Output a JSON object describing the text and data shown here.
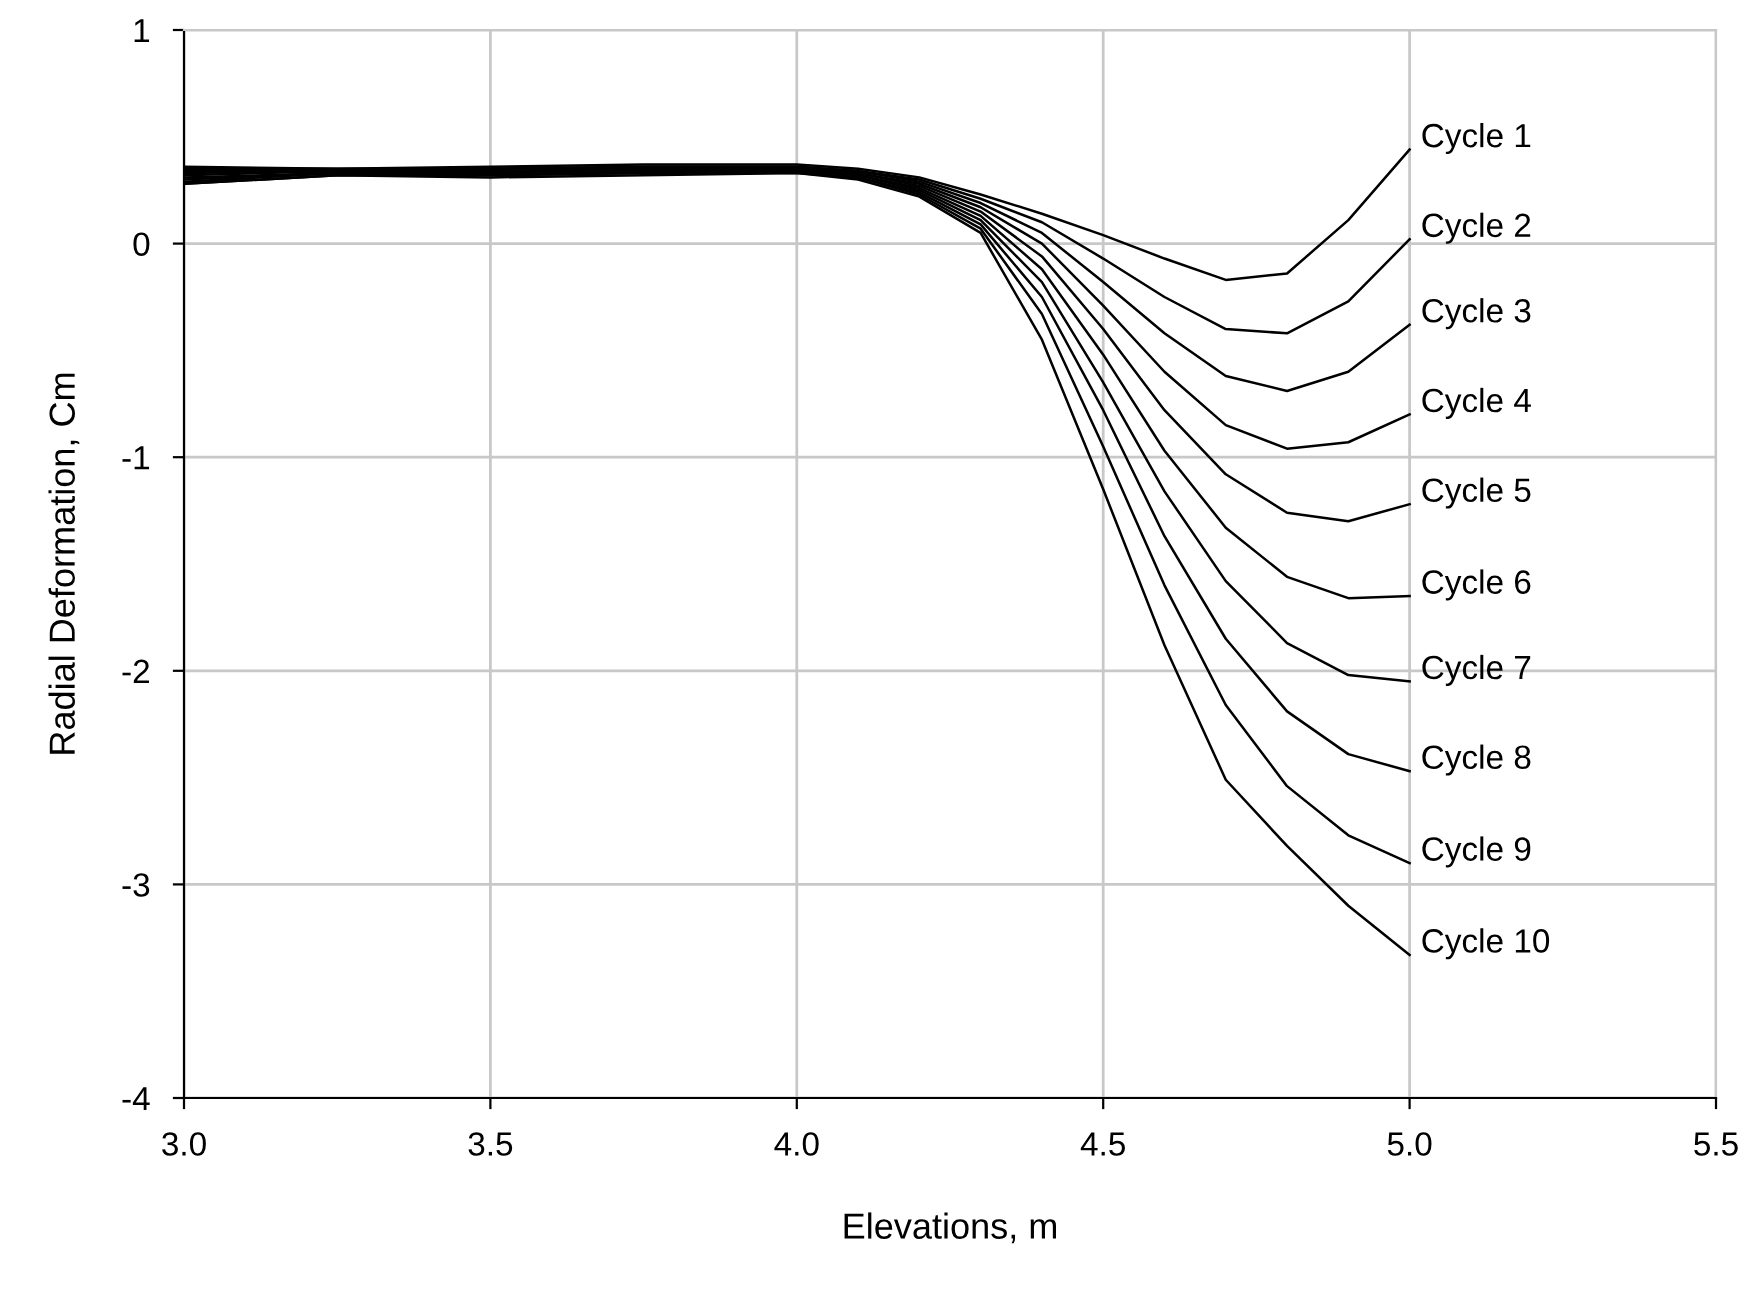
{
  "chart_data": {
    "type": "line",
    "xlabel": "Elevations, m",
    "ylabel": "Radial Deformation, Cm",
    "x": [
      3.0,
      3.25,
      3.5,
      3.75,
      4.0,
      4.1,
      4.2,
      4.3,
      4.4,
      4.5,
      4.6,
      4.7,
      4.8,
      4.9,
      5.0
    ],
    "xlim": [
      3.0,
      5.5
    ],
    "xticks": [
      {
        "value": 3.0,
        "label": "3.0"
      },
      {
        "value": 3.5,
        "label": "3.5"
      },
      {
        "value": 4.0,
        "label": "4.0"
      },
      {
        "value": 4.5,
        "label": "4.5"
      },
      {
        "value": 5.0,
        "label": "5.0"
      },
      {
        "value": 5.5,
        "label": "5.5"
      }
    ],
    "ylim": [
      -4,
      1
    ],
    "yticks": [
      -4,
      -3,
      -2,
      -1,
      0,
      1
    ],
    "grid": true,
    "legend": false,
    "marker": "none",
    "line_style": "solid",
    "series": [
      {
        "name": "Cycle 1",
        "color": "#000000",
        "values": [
          0.36,
          0.35,
          0.36,
          0.37,
          0.37,
          0.35,
          0.31,
          0.23,
          0.14,
          0.04,
          -0.07,
          -0.17,
          -0.14,
          0.11,
          0.44
        ]
      },
      {
        "name": "Cycle 2",
        "color": "#000000",
        "values": [
          0.35,
          0.35,
          0.35,
          0.36,
          0.36,
          0.34,
          0.3,
          0.21,
          0.1,
          -0.07,
          -0.25,
          -0.4,
          -0.42,
          -0.27,
          0.02
        ]
      },
      {
        "name": "Cycle 3",
        "color": "#000000",
        "values": [
          0.34,
          0.34,
          0.35,
          0.36,
          0.36,
          0.34,
          0.29,
          0.19,
          0.05,
          -0.18,
          -0.42,
          -0.62,
          -0.69,
          -0.6,
          -0.38
        ]
      },
      {
        "name": "Cycle 4",
        "color": "#000000",
        "values": [
          0.33,
          0.34,
          0.34,
          0.35,
          0.35,
          0.33,
          0.28,
          0.17,
          0.0,
          -0.29,
          -0.6,
          -0.85,
          -0.96,
          -0.93,
          -0.8
        ]
      },
      {
        "name": "Cycle 5",
        "color": "#000000",
        "values": [
          0.32,
          0.34,
          0.34,
          0.35,
          0.35,
          0.33,
          0.27,
          0.15,
          -0.06,
          -0.4,
          -0.78,
          -1.08,
          -1.26,
          -1.3,
          -1.22
        ]
      },
      {
        "name": "Cycle 6",
        "color": "#000000",
        "values": [
          0.31,
          0.33,
          0.33,
          0.34,
          0.35,
          0.32,
          0.26,
          0.13,
          -0.12,
          -0.52,
          -0.97,
          -1.33,
          -1.56,
          -1.66,
          -1.65
        ]
      },
      {
        "name": "Cycle 7",
        "color": "#000000",
        "values": [
          0.3,
          0.33,
          0.33,
          0.34,
          0.34,
          0.32,
          0.25,
          0.11,
          -0.18,
          -0.65,
          -1.16,
          -1.58,
          -1.87,
          -2.02,
          -2.05
        ]
      },
      {
        "name": "Cycle 8",
        "color": "#000000",
        "values": [
          0.29,
          0.33,
          0.32,
          0.33,
          0.34,
          0.31,
          0.24,
          0.09,
          -0.25,
          -0.78,
          -1.37,
          -1.85,
          -2.19,
          -2.39,
          -2.47
        ]
      },
      {
        "name": "Cycle 9",
        "color": "#000000",
        "values": [
          0.28,
          0.32,
          0.32,
          0.33,
          0.33,
          0.31,
          0.23,
          0.07,
          -0.33,
          -0.95,
          -1.6,
          -2.16,
          -2.54,
          -2.77,
          -2.9
        ]
      },
      {
        "name": "Cycle 10",
        "color": "#000000",
        "values": [
          0.28,
          0.32,
          0.31,
          0.32,
          0.33,
          0.3,
          0.22,
          0.05,
          -0.45,
          -1.15,
          -1.88,
          -2.51,
          -2.82,
          -3.1,
          -3.33
        ]
      }
    ]
  }
}
